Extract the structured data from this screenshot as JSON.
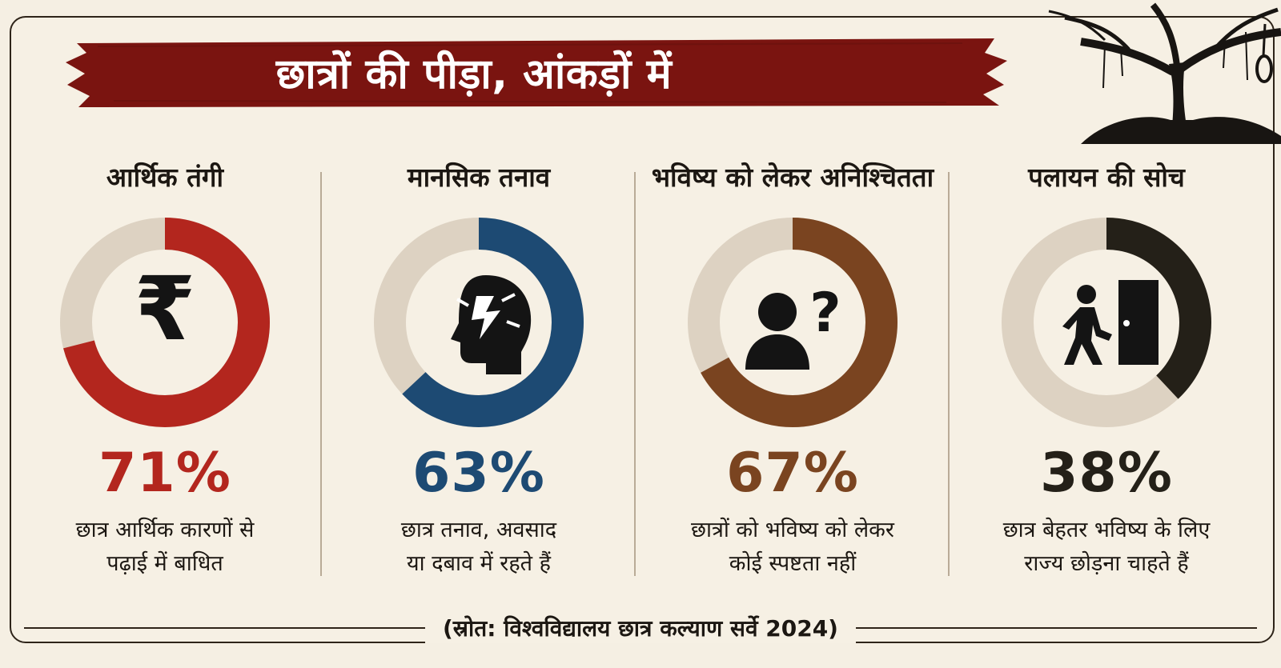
{
  "headline": "छात्रों की पीड़ा, आंकड़ों में",
  "colors": {
    "banner": "#7a1410",
    "track": "#ddd2c2",
    "financial": "#b3261e",
    "mental": "#1d4a73",
    "future": "#7a4420",
    "migration": "#242018",
    "icon": "#141414"
  },
  "panels": [
    {
      "title": "आर्थिक तंगी",
      "icon": "rupee-icon",
      "percent_label": "71%",
      "description_line1": "छात्र आर्थिक कारणों से",
      "description_line2": "पढ़ाई में बाधित"
    },
    {
      "title": "मानसिक तनाव",
      "icon": "stressed-head-icon",
      "percent_label": "63%",
      "description_line1": "छात्र तनाव, अवसाद",
      "description_line2": "या दबाव में रहते हैं"
    },
    {
      "title": "भविष्य को लेकर अनिश्चितता",
      "icon": "person-question-icon",
      "percent_label": "67%",
      "description_line1": "छात्रों को भविष्य को लेकर",
      "description_line2": "कोई स्पष्टता नहीं"
    },
    {
      "title": "पलायन की सोच",
      "icon": "person-exit-door-icon",
      "percent_label": "38%",
      "description_line1": "छात्र बेहतर भविष्य के लिए",
      "description_line2": "राज्य छोड़ना चाहते हैं"
    }
  ],
  "chart_data": {
    "type": "donut",
    "categories": [
      "आर्थिक तंगी",
      "मानसिक तनाव",
      "भविष्य को लेकर अनिश्चितता",
      "पलायन की सोच"
    ],
    "values": [
      71,
      63,
      67,
      38
    ],
    "unit": "%",
    "ylim": [
      0,
      100
    ]
  },
  "source": "(स्रोत: विश्वविद्यालय छात्र कल्याण सर्वे 2024)"
}
